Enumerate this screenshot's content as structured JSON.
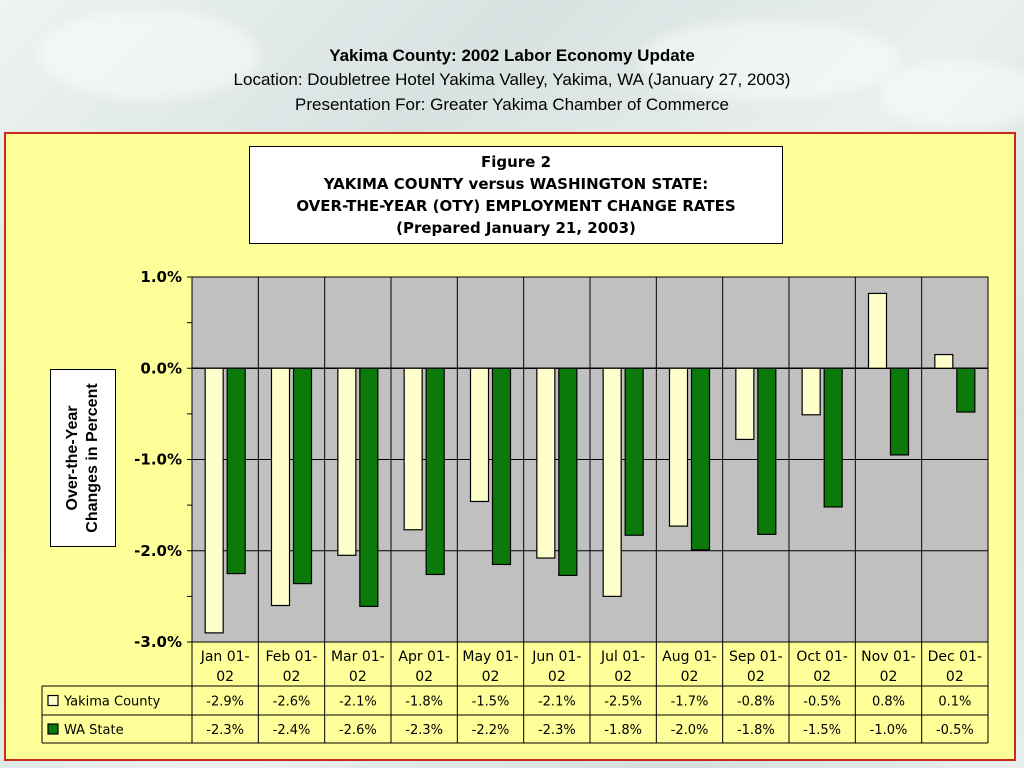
{
  "header": {
    "title": "Yakima County: 2002 Labor Economy Update",
    "location": "Location: Doubletree Hotel Yakima Valley, Yakima, WA (January 27, 2003)",
    "presentation": "Presentation For: Greater Yakima Chamber of Commerce"
  },
  "chart_data": {
    "type": "bar",
    "title_lines": [
      "Figure 2",
      "YAKIMA COUNTY versus WASHINGTON STATE:",
      "OVER-THE-YEAR (OTY) EMPLOYMENT CHANGE RATES",
      "(Prepared January 21, 2003)"
    ],
    "ylabel_lines": [
      "Over-the-Year",
      "Changes in Percent"
    ],
    "ylim": [
      -3.0,
      1.0
    ],
    "yticks": [
      1.0,
      0.0,
      -1.0,
      -2.0,
      -3.0
    ],
    "ytick_labels": [
      "1.0%",
      "0.0%",
      "-1.0%",
      "-2.0%",
      "-3.0%"
    ],
    "categories": [
      [
        "Jan 01-",
        "02"
      ],
      [
        "Feb 01-",
        "02"
      ],
      [
        "Mar 01-",
        "02"
      ],
      [
        "Apr 01-",
        "02"
      ],
      [
        "May 01-",
        "02"
      ],
      [
        "Jun 01-",
        "02"
      ],
      [
        "Jul 01-",
        "02"
      ],
      [
        "Aug 01-",
        "02"
      ],
      [
        "Sep 01-",
        "02"
      ],
      [
        "Oct 01-",
        "02"
      ],
      [
        "Nov 01-",
        "02"
      ],
      [
        "Dec 01-",
        "02"
      ]
    ],
    "series": [
      {
        "name": "Yakima County",
        "color": "#ffffcc",
        "values": [
          -2.9,
          -2.6,
          -2.05,
          -1.77,
          -1.46,
          -2.08,
          -2.5,
          -1.73,
          -0.78,
          -0.51,
          0.82,
          0.15
        ],
        "labels": [
          "-2.9%",
          "-2.6%",
          "-2.1%",
          "-1.8%",
          "-1.5%",
          "-2.1%",
          "-2.5%",
          "-1.7%",
          "-0.8%",
          "-0.5%",
          "0.8%",
          "0.1%"
        ]
      },
      {
        "name": "WA State",
        "color": "#0b7a0b",
        "values": [
          -2.25,
          -2.36,
          -2.61,
          -2.26,
          -2.15,
          -2.27,
          -1.83,
          -1.99,
          -1.82,
          -1.52,
          -0.95,
          -0.48
        ],
        "labels": [
          "-2.3%",
          "-2.4%",
          "-2.6%",
          "-2.3%",
          "-2.2%",
          "-2.3%",
          "-1.8%",
          "-2.0%",
          "-1.8%",
          "-1.5%",
          "-1.0%",
          "-0.5%"
        ]
      }
    ],
    "grid": true,
    "plot_background": "#c0c0c0",
    "panel_background": "#ffff99",
    "border_color": "#c62a1c"
  }
}
